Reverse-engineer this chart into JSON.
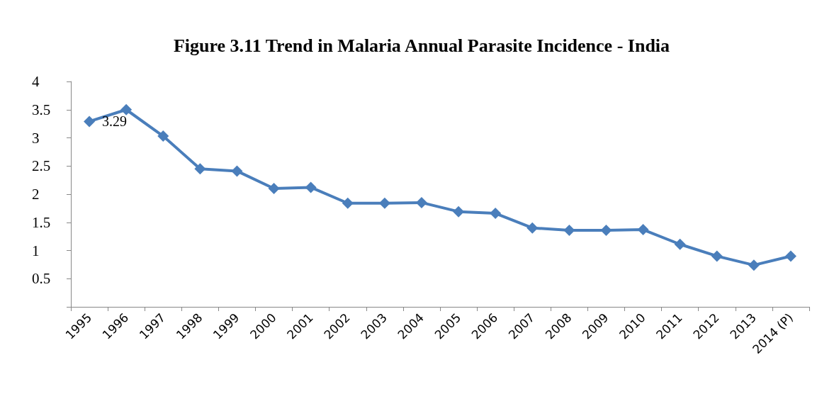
{
  "chart_data": {
    "type": "line",
    "title": "Figure 3.11 Trend in Malaria Annual Parasite Incidence - India",
    "categories": [
      "1995",
      "1996",
      "1997",
      "1998",
      "1999",
      "2000",
      "2001",
      "2002",
      "2003",
      "2004",
      "2005",
      "2006",
      "2007",
      "2008",
      "2009",
      "2010",
      "2011",
      "2012",
      "2013",
      "2014 (P)"
    ],
    "series": [
      {
        "color": "#4a7ebb",
        "values": [
          3.29,
          3.5,
          3.03,
          2.45,
          2.41,
          2.1,
          2.12,
          1.84,
          1.84,
          1.85,
          1.69,
          1.66,
          1.4,
          1.36,
          1.36,
          1.37,
          1.11,
          0.9,
          0.74,
          0.9
        ],
        "value_labels": [
          "3.29",
          null,
          null,
          null,
          null,
          null,
          null,
          null,
          null,
          null,
          null,
          null,
          null,
          null,
          null,
          null,
          null,
          null,
          null,
          null
        ]
      }
    ],
    "ylim": [
      0,
      4
    ],
    "yticks": [
      {
        "value": 0,
        "label": null
      },
      0.5,
      1,
      1.5,
      2,
      2.5,
      3,
      3.5,
      4
    ],
    "grid": false,
    "marker": "diamond",
    "line_style": "solid"
  }
}
